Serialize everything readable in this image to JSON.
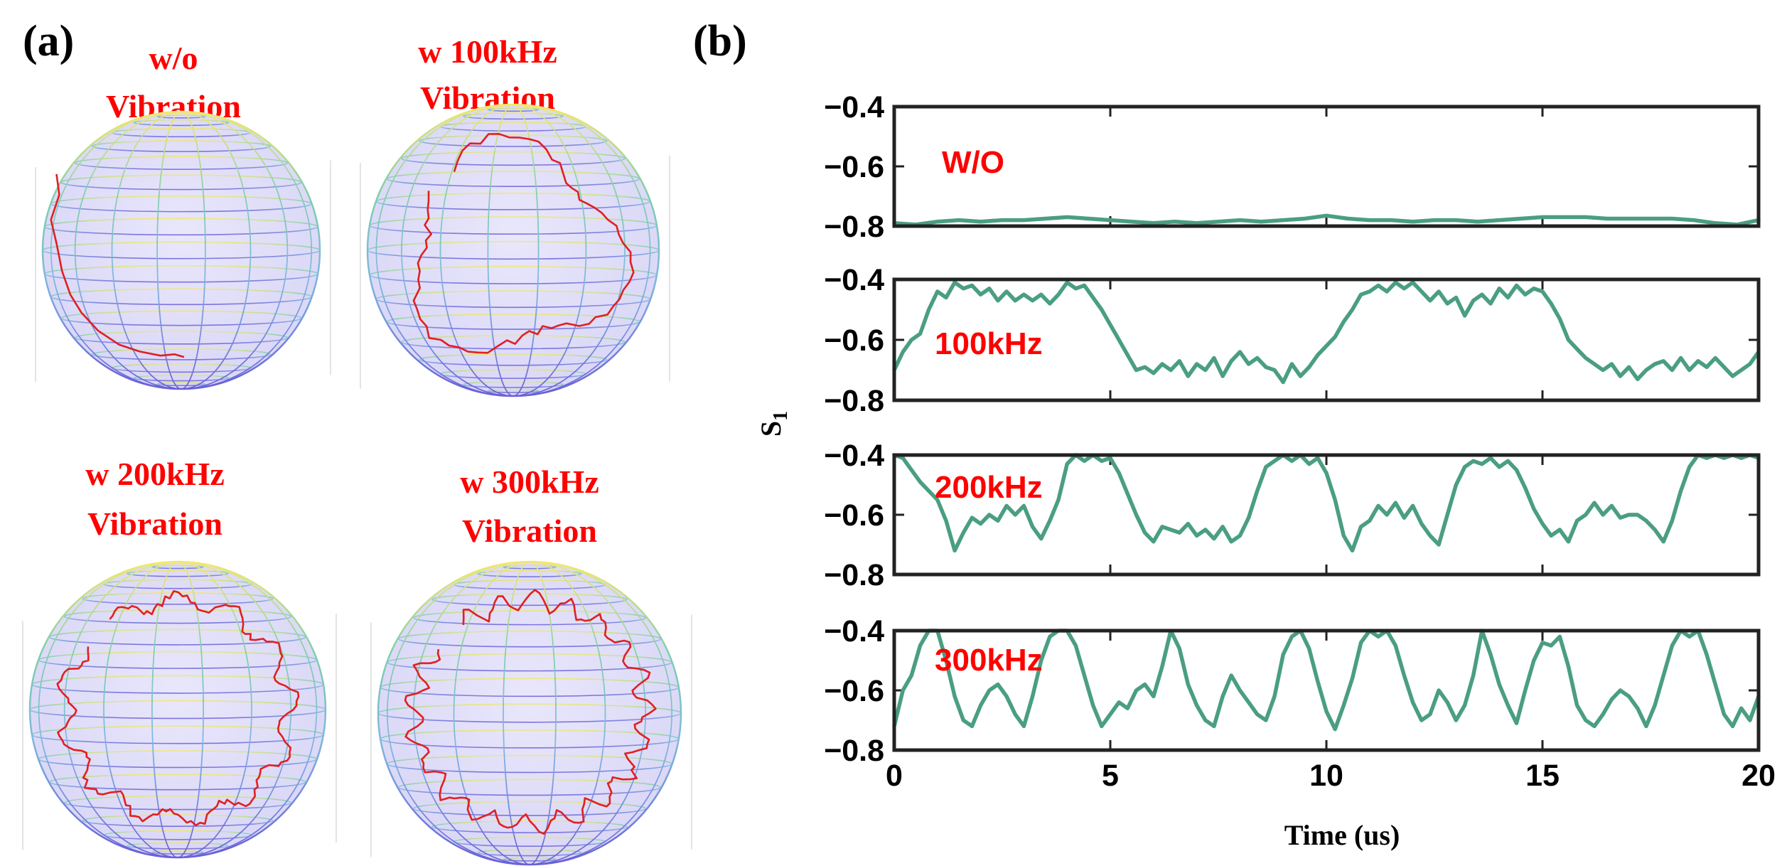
{
  "figure": {
    "label_a": "(a)",
    "label_b": "(b)"
  },
  "spheres": [
    {
      "title_line1": "w/o",
      "title_line2": "Vibration",
      "trace": "w/o"
    },
    {
      "title_line1": "w 100kHz",
      "title_line2": "Vibration",
      "trace": "100kHz"
    },
    {
      "title_line1": "w 200kHz",
      "title_line2": "Vibration",
      "trace": "200kHz"
    },
    {
      "title_line1": "w 300kHz",
      "title_line2": "Vibration",
      "trace": "300kHz"
    }
  ],
  "colors": {
    "trace": "#4a9e82",
    "sphere_trace": "#e02020",
    "title": "#ff0000",
    "axes": "#222222"
  },
  "chart_data": {
    "type": "line",
    "title": "",
    "xlabel": "Time (us)",
    "ylabel": "S1",
    "ylabel_main": "S",
    "ylabel_sub": "1",
    "xlim": [
      0,
      20
    ],
    "xticks": [
      0,
      5,
      10,
      15,
      20
    ],
    "ylim": [
      -0.8,
      -0.4
    ],
    "yticks": [
      -0.8,
      -0.6,
      -0.4
    ],
    "ytick_labels": [
      "−0.8",
      "−0.6",
      "−0.4"
    ],
    "grid": false,
    "series": [
      {
        "name": "W/O",
        "x": [
          0,
          0.5,
          1,
          1.5,
          2,
          2.5,
          3,
          3.5,
          4,
          4.5,
          5,
          5.5,
          6,
          6.5,
          7,
          7.5,
          8,
          8.5,
          9,
          9.5,
          10,
          10.5,
          11,
          11.5,
          12,
          12.5,
          13,
          13.5,
          14,
          14.5,
          15,
          15.5,
          16,
          16.5,
          17,
          17.5,
          18,
          18.5,
          19,
          19.5,
          20
        ],
        "values": [
          -0.79,
          -0.795,
          -0.785,
          -0.78,
          -0.785,
          -0.78,
          -0.78,
          -0.775,
          -0.77,
          -0.775,
          -0.78,
          -0.785,
          -0.79,
          -0.785,
          -0.79,
          -0.785,
          -0.78,
          -0.785,
          -0.78,
          -0.775,
          -0.765,
          -0.775,
          -0.78,
          -0.78,
          -0.785,
          -0.78,
          -0.78,
          -0.785,
          -0.78,
          -0.775,
          -0.77,
          -0.77,
          -0.77,
          -0.775,
          -0.775,
          -0.775,
          -0.775,
          -0.78,
          -0.79,
          -0.795,
          -0.78
        ]
      },
      {
        "name": "100kHz",
        "x": [
          0,
          0.2,
          0.4,
          0.6,
          0.8,
          1,
          1.2,
          1.4,
          1.6,
          1.8,
          2,
          2.2,
          2.4,
          2.6,
          2.8,
          3,
          3.2,
          3.4,
          3.6,
          3.8,
          4,
          4.2,
          4.4,
          4.6,
          4.8,
          5,
          5.2,
          5.4,
          5.6,
          5.8,
          6,
          6.2,
          6.4,
          6.6,
          6.8,
          7,
          7.2,
          7.4,
          7.6,
          7.8,
          8,
          8.2,
          8.4,
          8.6,
          8.8,
          9,
          9.2,
          9.4,
          9.6,
          9.8,
          10,
          10.2,
          10.4,
          10.6,
          10.8,
          11,
          11.2,
          11.4,
          11.6,
          11.8,
          12,
          12.2,
          12.4,
          12.6,
          12.8,
          13,
          13.2,
          13.4,
          13.6,
          13.8,
          14,
          14.2,
          14.4,
          14.6,
          14.8,
          15,
          15.2,
          15.4,
          15.6,
          15.8,
          16,
          16.2,
          16.4,
          16.6,
          16.8,
          17,
          17.2,
          17.4,
          17.6,
          17.8,
          18,
          18.2,
          18.4,
          18.6,
          18.8,
          19,
          19.2,
          19.4,
          19.6,
          19.8,
          20
        ],
        "values": [
          -0.7,
          -0.64,
          -0.6,
          -0.58,
          -0.5,
          -0.44,
          -0.46,
          -0.41,
          -0.43,
          -0.42,
          -0.45,
          -0.43,
          -0.47,
          -0.44,
          -0.47,
          -0.45,
          -0.47,
          -0.45,
          -0.48,
          -0.45,
          -0.41,
          -0.43,
          -0.42,
          -0.46,
          -0.5,
          -0.55,
          -0.6,
          -0.65,
          -0.7,
          -0.69,
          -0.71,
          -0.68,
          -0.7,
          -0.67,
          -0.72,
          -0.68,
          -0.7,
          -0.66,
          -0.72,
          -0.67,
          -0.64,
          -0.68,
          -0.66,
          -0.69,
          -0.7,
          -0.74,
          -0.68,
          -0.72,
          -0.69,
          -0.65,
          -0.62,
          -0.59,
          -0.54,
          -0.5,
          -0.45,
          -0.44,
          -0.42,
          -0.44,
          -0.41,
          -0.43,
          -0.41,
          -0.44,
          -0.47,
          -0.44,
          -0.48,
          -0.46,
          -0.52,
          -0.47,
          -0.45,
          -0.48,
          -0.43,
          -0.46,
          -0.42,
          -0.45,
          -0.43,
          -0.44,
          -0.48,
          -0.53,
          -0.6,
          -0.63,
          -0.66,
          -0.68,
          -0.7,
          -0.68,
          -0.72,
          -0.69,
          -0.73,
          -0.7,
          -0.68,
          -0.67,
          -0.7,
          -0.66,
          -0.7,
          -0.67,
          -0.69,
          -0.66,
          -0.69,
          -0.72,
          -0.7,
          -0.68,
          -0.64
        ]
      },
      {
        "name": "200kHz",
        "x": [
          0,
          0.2,
          0.4,
          0.6,
          0.8,
          1,
          1.2,
          1.4,
          1.6,
          1.8,
          2,
          2.2,
          2.4,
          2.6,
          2.8,
          3,
          3.2,
          3.4,
          3.6,
          3.8,
          4,
          4.2,
          4.4,
          4.6,
          4.8,
          5,
          5.2,
          5.4,
          5.6,
          5.8,
          6,
          6.2,
          6.4,
          6.6,
          6.8,
          7,
          7.2,
          7.4,
          7.6,
          7.8,
          8,
          8.2,
          8.4,
          8.6,
          8.8,
          9,
          9.2,
          9.4,
          9.6,
          9.8,
          10,
          10.2,
          10.4,
          10.6,
          10.8,
          11,
          11.2,
          11.4,
          11.6,
          11.8,
          12,
          12.2,
          12.4,
          12.6,
          12.8,
          13,
          13.2,
          13.4,
          13.6,
          13.8,
          14,
          14.2,
          14.4,
          14.6,
          14.8,
          15,
          15.2,
          15.4,
          15.6,
          15.8,
          16,
          16.2,
          16.4,
          16.6,
          16.8,
          17,
          17.2,
          17.4,
          17.6,
          17.8,
          18,
          18.2,
          18.4,
          18.6,
          18.8,
          19,
          19.2,
          19.4,
          19.6,
          19.8,
          20
        ],
        "values": [
          -0.4,
          -0.41,
          -0.45,
          -0.49,
          -0.52,
          -0.55,
          -0.62,
          -0.72,
          -0.66,
          -0.61,
          -0.63,
          -0.6,
          -0.62,
          -0.57,
          -0.6,
          -0.57,
          -0.64,
          -0.68,
          -0.62,
          -0.55,
          -0.43,
          -0.4,
          -0.42,
          -0.4,
          -0.42,
          -0.41,
          -0.46,
          -0.53,
          -0.6,
          -0.66,
          -0.69,
          -0.64,
          -0.65,
          -0.66,
          -0.63,
          -0.67,
          -0.65,
          -0.68,
          -0.64,
          -0.69,
          -0.67,
          -0.61,
          -0.52,
          -0.44,
          -0.42,
          -0.4,
          -0.42,
          -0.4,
          -0.43,
          -0.41,
          -0.46,
          -0.55,
          -0.67,
          -0.72,
          -0.64,
          -0.62,
          -0.57,
          -0.6,
          -0.56,
          -0.61,
          -0.57,
          -0.63,
          -0.67,
          -0.7,
          -0.6,
          -0.5,
          -0.44,
          -0.42,
          -0.43,
          -0.41,
          -0.44,
          -0.42,
          -0.45,
          -0.51,
          -0.58,
          -0.63,
          -0.67,
          -0.65,
          -0.69,
          -0.62,
          -0.6,
          -0.56,
          -0.6,
          -0.57,
          -0.61,
          -0.6,
          -0.6,
          -0.62,
          -0.65,
          -0.69,
          -0.62,
          -0.52,
          -0.44,
          -0.4,
          -0.41,
          -0.4,
          -0.41,
          -0.4,
          -0.41,
          -0.4,
          -0.41
        ]
      },
      {
        "name": "300kHz",
        "x": [
          0,
          0.2,
          0.4,
          0.6,
          0.8,
          1,
          1.2,
          1.4,
          1.6,
          1.8,
          2,
          2.2,
          2.4,
          2.6,
          2.8,
          3,
          3.2,
          3.4,
          3.6,
          3.8,
          4,
          4.2,
          4.4,
          4.6,
          4.8,
          5,
          5.2,
          5.4,
          5.6,
          5.8,
          6,
          6.2,
          6.4,
          6.6,
          6.8,
          7,
          7.2,
          7.4,
          7.6,
          7.8,
          8,
          8.2,
          8.4,
          8.6,
          8.8,
          9,
          9.2,
          9.4,
          9.6,
          9.8,
          10,
          10.2,
          10.4,
          10.6,
          10.8,
          11,
          11.2,
          11.4,
          11.6,
          11.8,
          12,
          12.2,
          12.4,
          12.6,
          12.8,
          13,
          13.2,
          13.4,
          13.6,
          13.8,
          14,
          14.2,
          14.4,
          14.6,
          14.8,
          15,
          15.2,
          15.4,
          15.6,
          15.8,
          16,
          16.2,
          16.4,
          16.6,
          16.8,
          17,
          17.2,
          17.4,
          17.6,
          17.8,
          18,
          18.2,
          18.4,
          18.6,
          18.8,
          19,
          19.2,
          19.4,
          19.6,
          19.8,
          20
        ],
        "values": [
          -0.72,
          -0.6,
          -0.55,
          -0.45,
          -0.4,
          -0.4,
          -0.5,
          -0.62,
          -0.7,
          -0.72,
          -0.65,
          -0.6,
          -0.58,
          -0.62,
          -0.68,
          -0.72,
          -0.62,
          -0.5,
          -0.42,
          -0.4,
          -0.4,
          -0.45,
          -0.55,
          -0.65,
          -0.72,
          -0.68,
          -0.64,
          -0.66,
          -0.6,
          -0.58,
          -0.62,
          -0.52,
          -0.4,
          -0.46,
          -0.58,
          -0.65,
          -0.7,
          -0.72,
          -0.62,
          -0.55,
          -0.6,
          -0.64,
          -0.68,
          -0.7,
          -0.62,
          -0.48,
          -0.42,
          -0.4,
          -0.46,
          -0.57,
          -0.67,
          -0.73,
          -0.65,
          -0.56,
          -0.44,
          -0.4,
          -0.42,
          -0.4,
          -0.45,
          -0.55,
          -0.64,
          -0.7,
          -0.68,
          -0.6,
          -0.64,
          -0.7,
          -0.65,
          -0.55,
          -0.4,
          -0.48,
          -0.58,
          -0.65,
          -0.71,
          -0.6,
          -0.5,
          -0.44,
          -0.45,
          -0.42,
          -0.52,
          -0.65,
          -0.7,
          -0.72,
          -0.68,
          -0.63,
          -0.6,
          -0.62,
          -0.66,
          -0.72,
          -0.65,
          -0.55,
          -0.45,
          -0.4,
          -0.42,
          -0.4,
          -0.48,
          -0.58,
          -0.68,
          -0.72,
          -0.66,
          -0.7,
          -0.62
        ]
      }
    ]
  }
}
